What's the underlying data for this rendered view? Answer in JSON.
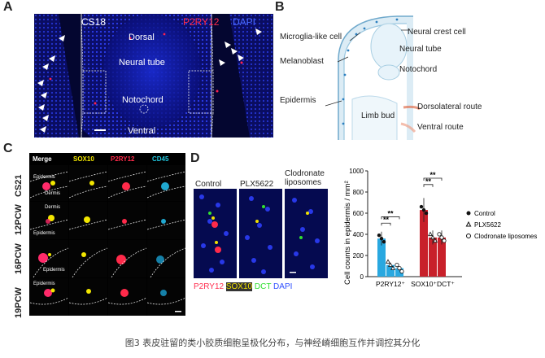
{
  "panel_a": {
    "letter": "A",
    "stage": "CS18",
    "stain_red": "P2RY12",
    "stain_blue": "DAPI",
    "regions": [
      "Dorsal",
      "Neural tube",
      "Notochord",
      "Ventral"
    ]
  },
  "panel_b": {
    "letter": "B",
    "labels": {
      "microglia": "Microglia-like cell",
      "neural_crest": "Neural crest cell",
      "neural_tube": "Neural tube",
      "melanoblast": "Melanoblast",
      "notochord": "Notochord",
      "epidermis": "Epidermis",
      "limb_bud": "Limb bud",
      "dorsolateral": "Dorsolateral route",
      "ventral": "Ventral route"
    }
  },
  "panel_c": {
    "letter": "C",
    "columns": [
      "Merge",
      "SOX10",
      "P2RY12",
      "CD45"
    ],
    "column_colors": [
      "#ffffff",
      "#f2e600",
      "#ff2a4a",
      "#20c8e0"
    ],
    "rows": [
      "CS21",
      "12PCW",
      "16PCW",
      "19PCW"
    ],
    "tile_labels": {
      "r0_epidermis": "Epidermis",
      "r0_dermis": "Dermis",
      "r1_dermis": "Dermis",
      "r1_epidermis": "Epidermis",
      "r2_epidermis": "Epidermis",
      "r3_epidermis": "Epidermis"
    }
  },
  "panel_d": {
    "letter": "D",
    "conditions": [
      "Control",
      "PLX5622",
      "Clodronate\nliposomes"
    ],
    "legend_stains": [
      {
        "text": "P2RY12",
        "color": "#ff3050"
      },
      {
        "text": "SOX10",
        "color": "#f0e000"
      },
      {
        "text": "DCT",
        "color": "#30e030"
      },
      {
        "text": "DAPI",
        "color": "#3050ff"
      }
    ]
  },
  "chart_data": {
    "type": "bar",
    "ylabel": "Cell counts in epidermis / mm²",
    "ylim": [
      0,
      1000
    ],
    "yticks": [
      0,
      200,
      400,
      600,
      800,
      1000
    ],
    "categories": [
      "P2RY12⁺",
      "SOX10⁺DCT⁺"
    ],
    "category_colors": [
      "#29a8e0",
      "#c8202a"
    ],
    "series": [
      {
        "name": "Control",
        "marker": "circle-filled",
        "values": [
          360,
          630
        ]
      },
      {
        "name": "PLX5622",
        "marker": "triangle-open",
        "values": [
          110,
          370
        ]
      },
      {
        "name": "Clodronate liposomes",
        "marker": "circle-open",
        "values": [
          80,
          370
        ]
      }
    ],
    "significance": [
      "**",
      "**",
      "**",
      "**"
    ]
  },
  "caption": "图3 表皮驻留的类小胶质细胞呈极化分布，与神经嵴细胞互作并调控其分化"
}
